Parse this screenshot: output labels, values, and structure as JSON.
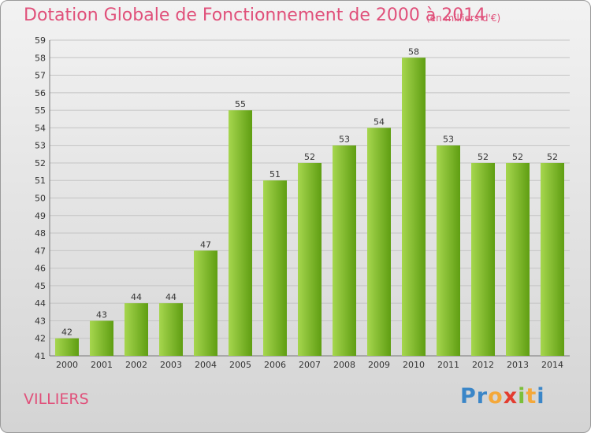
{
  "header": {
    "title": "Dotation Globale de Fonctionnement de 2000 à 2014",
    "subtitle": "(en milliers d'€)"
  },
  "footer": {
    "commune": "VILLIERS",
    "logo": "Proxiti",
    "logo_letters": [
      {
        "ch": "P",
        "color": "#3a86c8"
      },
      {
        "ch": "r",
        "color": "#3a86c8"
      },
      {
        "ch": "o",
        "color": "#f4a83a"
      },
      {
        "ch": "x",
        "color": "#e33c2f"
      },
      {
        "ch": "i",
        "color": "#7bbf3a"
      },
      {
        "ch": "t",
        "color": "#f4a83a"
      },
      {
        "ch": "i",
        "color": "#3a86c8"
      }
    ]
  },
  "colors": {
    "text_accent": "#e0507a",
    "bar_light": "#a6d64e",
    "bar_dark": "#5f9e12"
  },
  "chart_data": {
    "type": "bar",
    "title": "Dotation Globale de Fonctionnement de 2000 à 2014",
    "subtitle": "(en milliers d'€)",
    "xlabel": "",
    "ylabel": "",
    "categories": [
      "2000",
      "2001",
      "2002",
      "2003",
      "2004",
      "2005",
      "2006",
      "2007",
      "2008",
      "2009",
      "2010",
      "2011",
      "2012",
      "2013",
      "2014"
    ],
    "values": [
      42,
      43,
      44,
      44,
      47,
      55,
      51,
      52,
      53,
      54,
      58,
      53,
      52,
      52,
      52
    ],
    "ylim": [
      41,
      59
    ],
    "yticks": [
      41,
      42,
      43,
      44,
      45,
      46,
      47,
      48,
      49,
      50,
      51,
      52,
      53,
      54,
      55,
      56,
      57,
      58,
      59
    ],
    "grid": true,
    "data_labels": true
  }
}
